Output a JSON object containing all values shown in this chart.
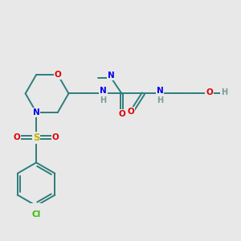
{
  "bg_color": "#e8e8e8",
  "atom_colors": {
    "C": "#2d7d7d",
    "N": "#0000ee",
    "O": "#dd0000",
    "S": "#bbbb00",
    "Cl": "#33bb00",
    "H": "#7a9a9a"
  },
  "bond_color": "#2d7d7d",
  "figsize": [
    3.0,
    3.0
  ],
  "dpi": 100
}
